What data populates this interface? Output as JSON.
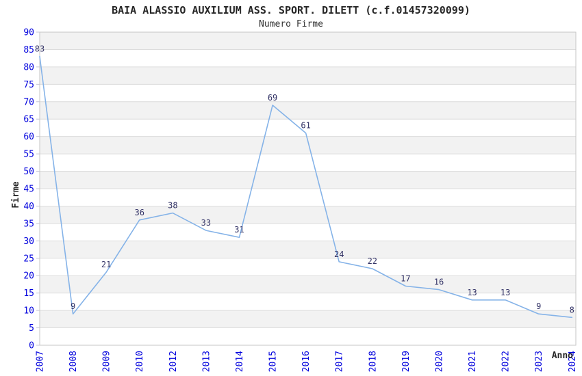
{
  "chart": {
    "title": "BAIA ALASSIO AUXILIUM ASS. SPORT. DILETT (c.f.01457320099)",
    "subtitle": "Numero Firme",
    "ylabel": "Firme",
    "xlabel": "Anno"
  },
  "chart_data": {
    "type": "line",
    "title": "BAIA ALASSIO AUXILIUM ASS. SPORT. DILETT (c.f.01457320099)",
    "subtitle": "Numero Firme",
    "xlabel": "Anno",
    "ylabel": "Firme",
    "categories": [
      "2007",
      "2008",
      "2009",
      "2010",
      "2012",
      "2013",
      "2014",
      "2015",
      "2016",
      "2017",
      "2018",
      "2019",
      "2020",
      "2021",
      "2022",
      "2023",
      "2024"
    ],
    "values": [
      83,
      9,
      21,
      36,
      38,
      33,
      31,
      69,
      61,
      24,
      22,
      17,
      16,
      13,
      13,
      9,
      8
    ],
    "ylim": [
      0,
      90
    ],
    "ytick_step": 5,
    "yticks": [
      0,
      5,
      10,
      15,
      20,
      25,
      30,
      35,
      40,
      45,
      50,
      55,
      60,
      65,
      70,
      75,
      80,
      85,
      90
    ],
    "grid": true,
    "legend": "none",
    "background_bands": "alternating 5-unit horizontal stripes, gray band directly below each multiple of 10",
    "point_labels_visible": true,
    "colors": {
      "series_line": "#85b3e8",
      "data_label": "#333366",
      "axis_tick_label": "#0000dd",
      "band_fill": "#f2f2f2",
      "gridline": "#dcdcdc",
      "plot_border": "#c6c6c6",
      "tick_mark": "#c4c4d4",
      "title_text": "#262626",
      "axis_title_text": "#262626"
    }
  }
}
